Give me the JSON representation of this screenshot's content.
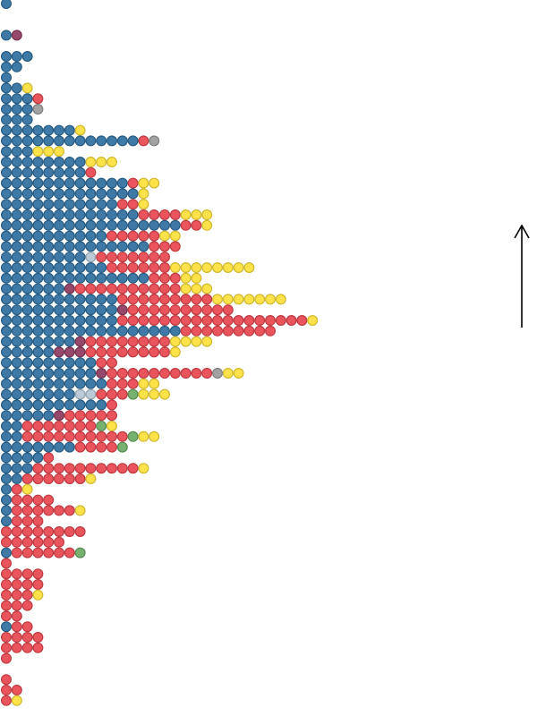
{
  "chart_data": {
    "type": "dotrows",
    "series": [
      {
        "color": "#2f6f9f",
        "values": [
          1,
          0,
          0,
          1,
          0,
          3,
          2,
          1,
          2,
          3,
          3,
          3,
          7,
          13,
          3,
          8,
          8,
          12,
          13,
          11,
          13,
          17,
          10,
          14,
          8,
          10,
          14,
          6,
          11,
          11,
          11,
          17,
          7,
          5,
          9,
          9,
          10,
          7,
          10,
          5,
          2,
          2,
          7,
          4,
          3,
          2,
          1,
          1,
          1,
          1,
          0,
          0,
          1,
          0,
          0,
          0,
          0,
          0,
          0,
          1,
          0,
          0,
          0,
          0,
          0,
          0,
          0
        ]
      },
      {
        "color": "#8e3a5e",
        "values": [
          0,
          0,
          0,
          1,
          0,
          0,
          0,
          0,
          0,
          0,
          0,
          0,
          0,
          0,
          0,
          0,
          0,
          0,
          0,
          0,
          0,
          0,
          0,
          0,
          0,
          0,
          0,
          1,
          0,
          1,
          0,
          0,
          1,
          3,
          0,
          1,
          0,
          0,
          0,
          1,
          0,
          0,
          0,
          0,
          0,
          0,
          0,
          0,
          0,
          0,
          0,
          0,
          0,
          0,
          0,
          0,
          0,
          0,
          0,
          0,
          0,
          0,
          0,
          0,
          0,
          0,
          0
        ]
      },
      {
        "color": "#b4c6d2",
        "values": [
          0,
          0,
          0,
          0,
          0,
          0,
          0,
          0,
          0,
          0,
          0,
          0,
          0,
          0,
          0,
          0,
          0,
          0,
          0,
          0,
          0,
          0,
          0,
          0,
          1,
          0,
          0,
          0,
          0,
          0,
          0,
          0,
          0,
          0,
          0,
          0,
          0,
          2,
          0,
          0,
          0,
          0,
          0,
          0,
          0,
          0,
          0,
          0,
          0,
          0,
          0,
          0,
          0,
          0,
          0,
          0,
          0,
          0,
          0,
          0,
          0,
          0,
          0,
          0,
          0,
          0,
          0
        ]
      },
      {
        "color": "#e8474f",
        "values": [
          0,
          0,
          0,
          0,
          0,
          0,
          0,
          0,
          0,
          1,
          0,
          0,
          0,
          1,
          0,
          0,
          1,
          1,
          0,
          2,
          4,
          2,
          5,
          3,
          7,
          6,
          3,
          10,
          9,
          10,
          18,
          9,
          8,
          8,
          2,
          10,
          3,
          3,
          1,
          5,
          7,
          10,
          4,
          1,
          10,
          6,
          1,
          4,
          6,
          3,
          8,
          6,
          6,
          1,
          4,
          4,
          3,
          3,
          2,
          2,
          4,
          4,
          1,
          0,
          1,
          2,
          1
        ]
      },
      {
        "color": "#6aaa64",
        "values": [
          0,
          0,
          0,
          0,
          0,
          0,
          0,
          0,
          0,
          0,
          0,
          0,
          0,
          0,
          0,
          0,
          0,
          0,
          0,
          0,
          0,
          0,
          0,
          0,
          0,
          0,
          0,
          0,
          0,
          0,
          0,
          0,
          0,
          0,
          0,
          0,
          0,
          1,
          0,
          0,
          1,
          1,
          1,
          0,
          0,
          0,
          0,
          0,
          0,
          0,
          0,
          0,
          1,
          0,
          0,
          0,
          0,
          0,
          0,
          0,
          0,
          0,
          0,
          0,
          0,
          0,
          0
        ]
      },
      {
        "color": "#9a9a9a",
        "values": [
          0,
          0,
          0,
          0,
          0,
          0,
          0,
          0,
          0,
          0,
          1,
          0,
          0,
          1,
          0,
          0,
          0,
          0,
          0,
          0,
          0,
          0,
          0,
          0,
          0,
          0,
          0,
          0,
          0,
          0,
          0,
          0,
          0,
          0,
          0,
          1,
          0,
          0,
          0,
          0,
          0,
          0,
          0,
          0,
          0,
          0,
          0,
          0,
          0,
          0,
          0,
          0,
          0,
          0,
          0,
          0,
          0,
          0,
          0,
          0,
          0,
          0,
          0,
          0,
          0,
          0,
          0
        ]
      },
      {
        "color": "#fde03a",
        "values": [
          0,
          0,
          0,
          0,
          0,
          0,
          0,
          0,
          1,
          0,
          0,
          0,
          1,
          0,
          3,
          3,
          0,
          2,
          1,
          1,
          3,
          1,
          2,
          0,
          0,
          8,
          2,
          3,
          7,
          0,
          1,
          0,
          4,
          1,
          0,
          2,
          2,
          3,
          0,
          0,
          1,
          2,
          0,
          0,
          1,
          1,
          1,
          0,
          1,
          0,
          0,
          0,
          0,
          0,
          0,
          0,
          1,
          0,
          0,
          0,
          0,
          0,
          0,
          0,
          0,
          0,
          1
        ]
      }
    ]
  }
}
